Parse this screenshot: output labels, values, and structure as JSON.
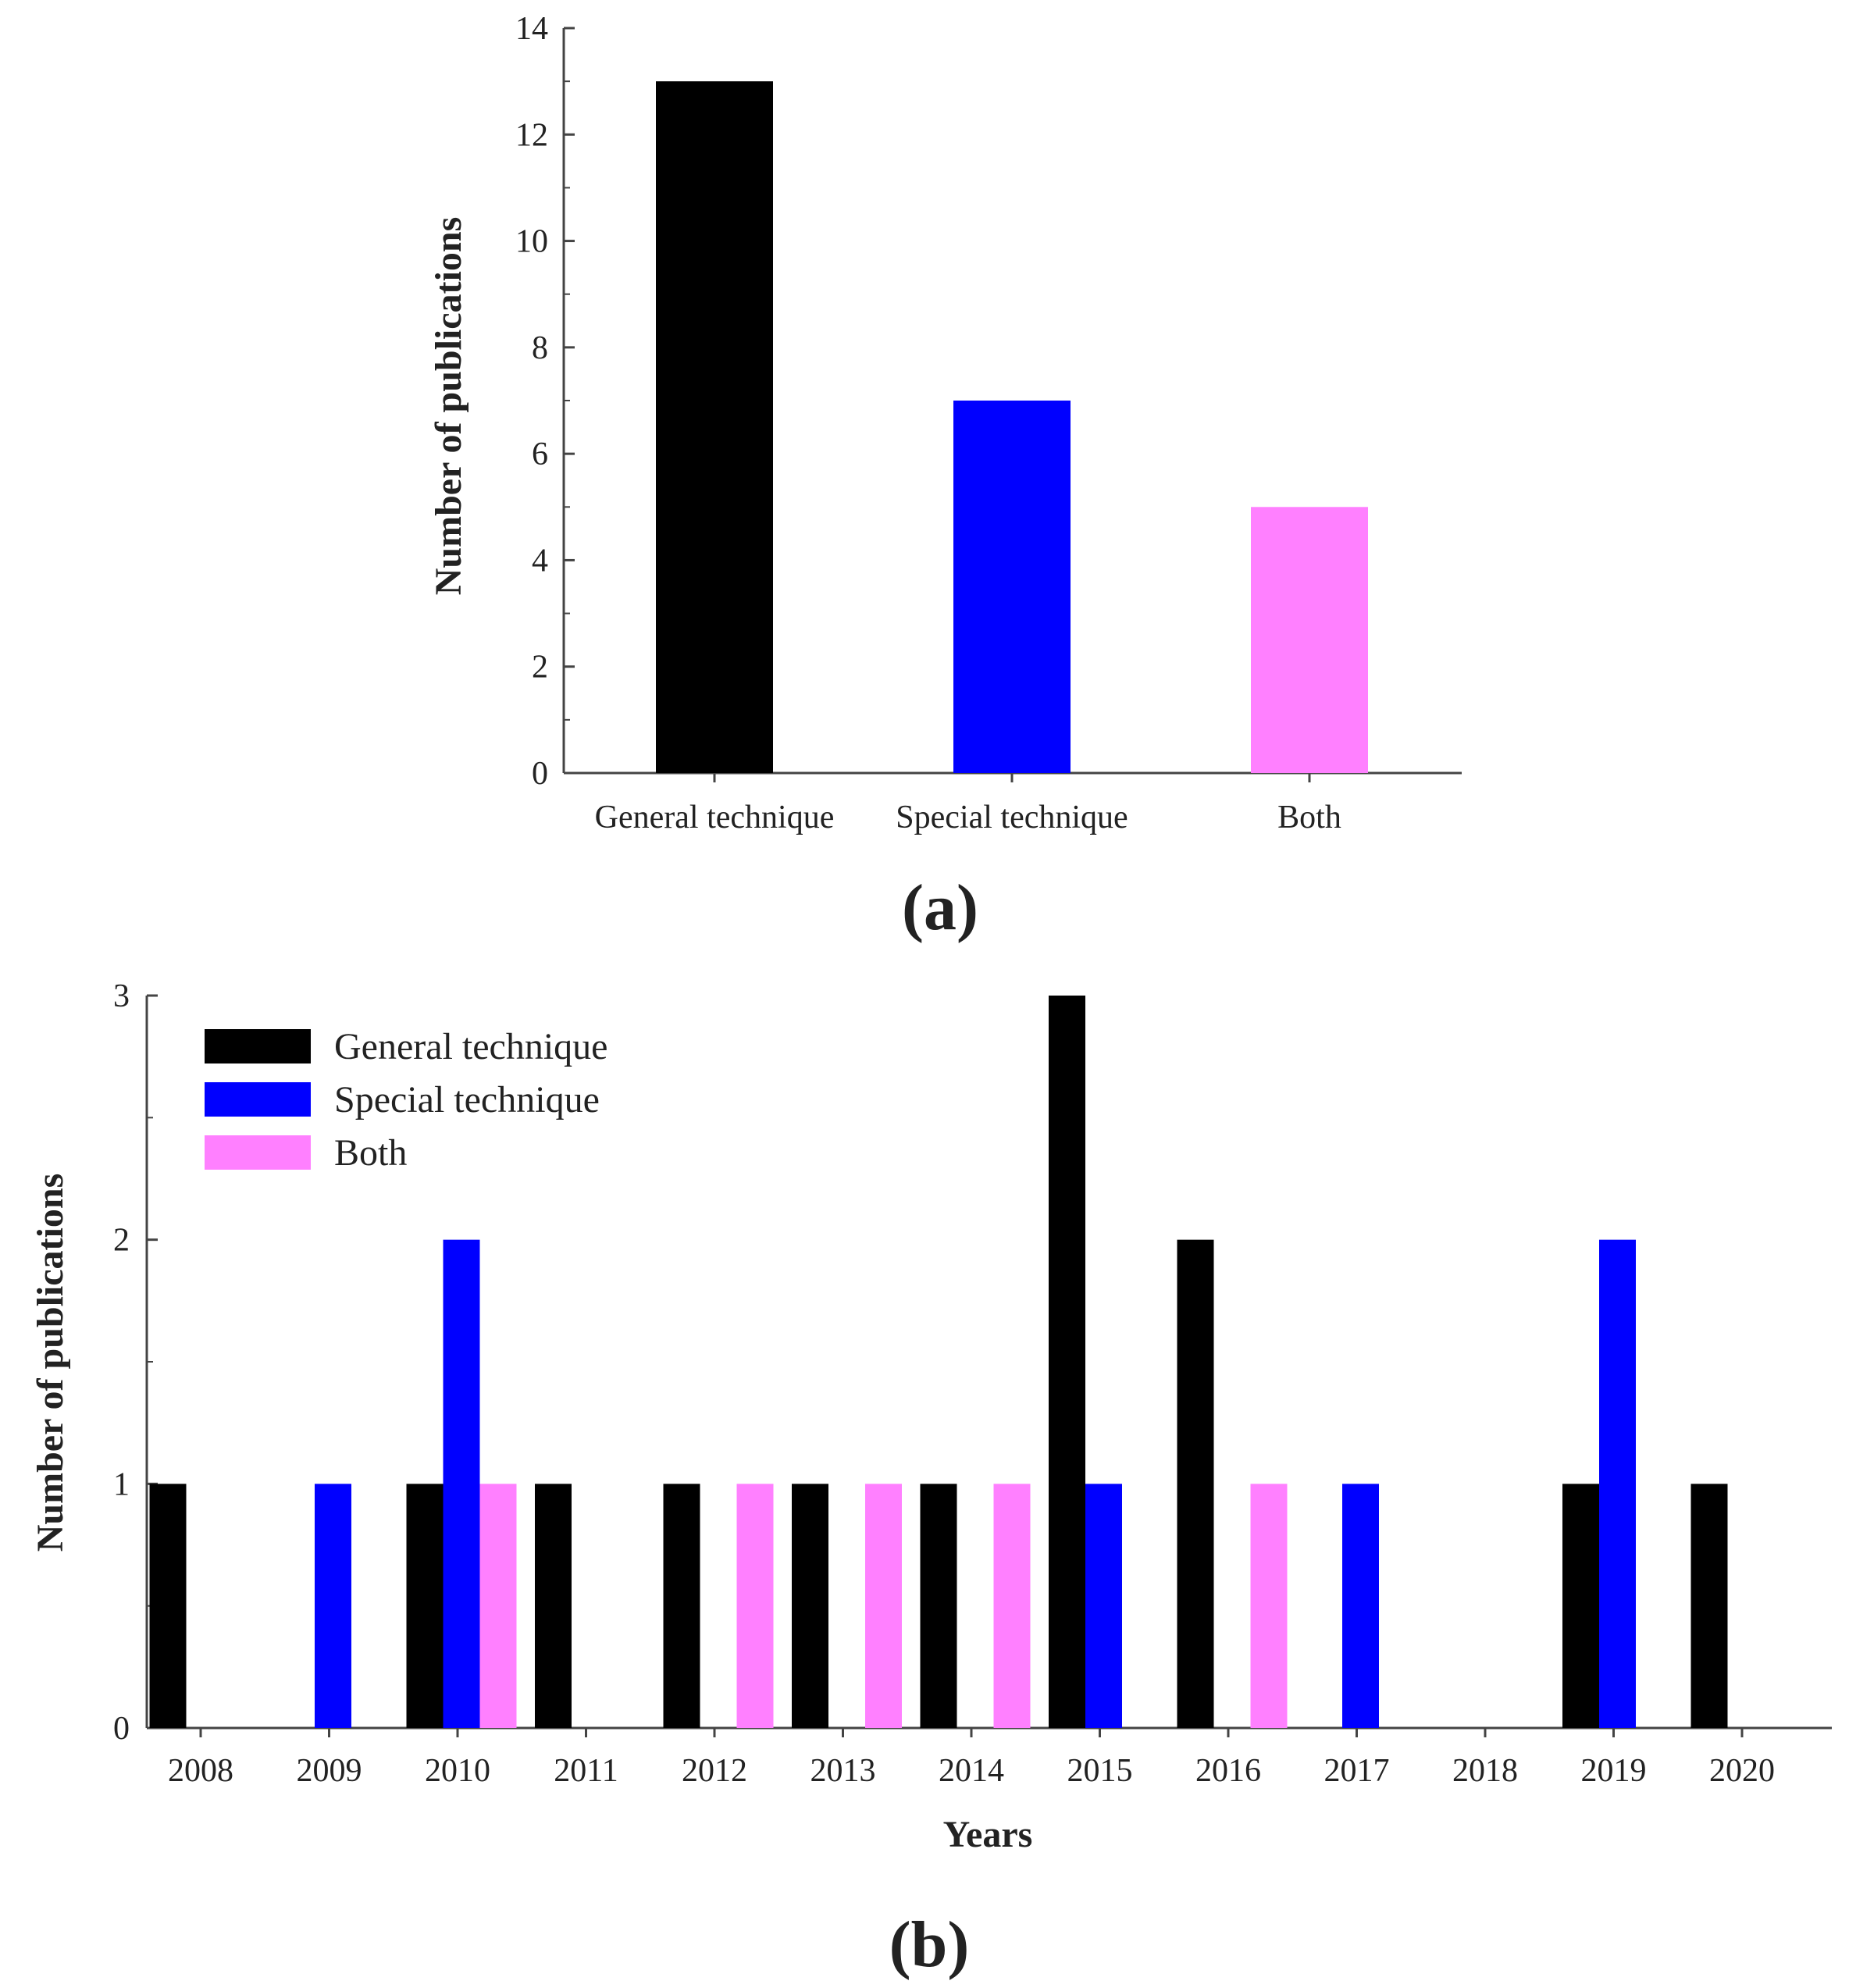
{
  "colors": {
    "general": "#000000",
    "special": "#0000ff",
    "both": "#ff80ff",
    "axis": "#444444"
  },
  "chart_data": [
    {
      "type": "bar",
      "panel_label": "(a)",
      "title": "",
      "xlabel": "",
      "ylabel": "Number of publications",
      "ylim": [
        0,
        14
      ],
      "yticks": [
        0,
        2,
        4,
        6,
        8,
        10,
        12,
        14
      ],
      "categories": [
        "General technique",
        "Special technique",
        "Both"
      ],
      "values": [
        13,
        7,
        5
      ],
      "bar_colors": [
        "general",
        "special",
        "both"
      ],
      "grid": false
    },
    {
      "type": "bar",
      "panel_label": "(b)",
      "title": "",
      "xlabel": "Years",
      "ylabel": "Number of publications",
      "ylim": [
        0,
        3
      ],
      "yticks": [
        0,
        1,
        2,
        3
      ],
      "categories": [
        "2008",
        "2009",
        "2010",
        "2011",
        "2012",
        "2013",
        "2014",
        "2015",
        "2016",
        "2017",
        "2018",
        "2019",
        "2020"
      ],
      "series": [
        {
          "name": "General technique",
          "color": "general",
          "values": [
            1,
            0,
            1,
            1,
            1,
            1,
            1,
            3,
            2,
            0,
            0,
            1,
            1
          ]
        },
        {
          "name": "Special technique",
          "color": "special",
          "values": [
            0,
            1,
            2,
            0,
            0,
            0,
            0,
            1,
            0,
            1,
            0,
            2,
            0
          ]
        },
        {
          "name": "Both",
          "color": "both",
          "values": [
            0,
            0,
            1,
            0,
            1,
            1,
            1,
            0,
            1,
            0,
            0,
            0,
            0
          ]
        }
      ],
      "legend": {
        "position": "top-left",
        "entries": [
          "General technique",
          "Special technique",
          "Both"
        ]
      },
      "grid": false
    }
  ]
}
